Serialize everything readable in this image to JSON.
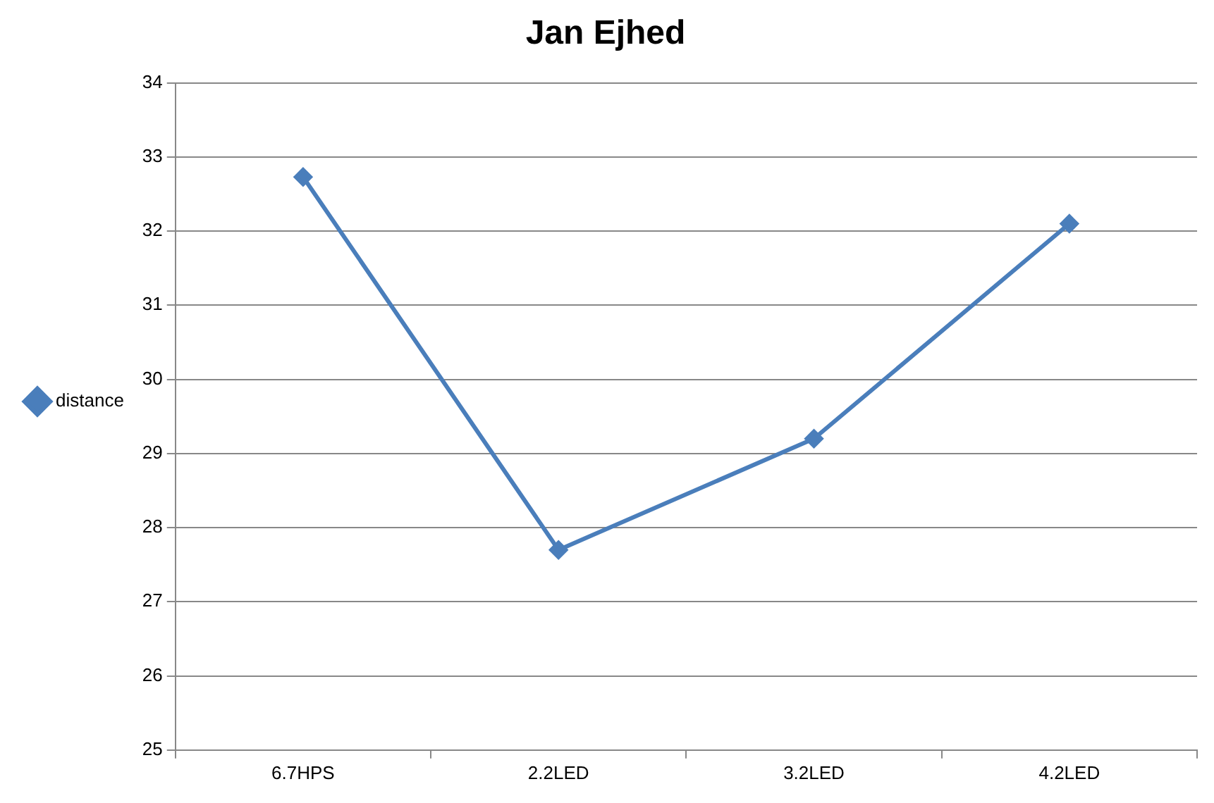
{
  "chart_data": {
    "type": "line",
    "title": "Jan Ejhed",
    "categories": [
      "6.7HPS",
      "2.2LED",
      "3.2LED",
      "4.2LED"
    ],
    "series": [
      {
        "name": "distance",
        "color": "#4a7ebb",
        "values": [
          32.73,
          27.7,
          29.2,
          32.1
        ]
      }
    ],
    "ylim": [
      25,
      34
    ],
    "yticks": [
      25,
      26,
      27,
      28,
      29,
      30,
      31,
      32,
      33,
      34
    ],
    "grid": "y",
    "legend": "left",
    "marker": "diamond",
    "line_style": "solid"
  }
}
